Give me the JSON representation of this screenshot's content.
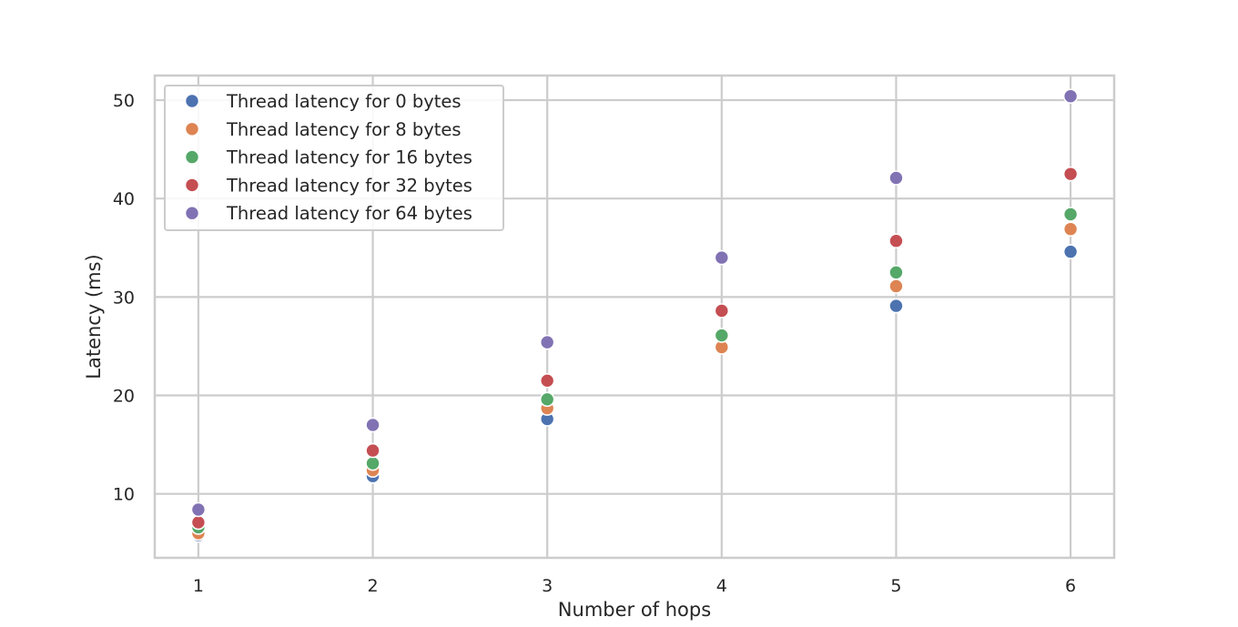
{
  "chart_data": {
    "type": "scatter",
    "title": "",
    "xlabel": "Number of hops",
    "ylabel": "Latency (ms)",
    "x": [
      1,
      2,
      3,
      4,
      5,
      6
    ],
    "xlim": [
      0.75,
      6.25
    ],
    "ylim": [
      3.5,
      52.5
    ],
    "xticks": [
      1,
      2,
      3,
      4,
      5,
      6
    ],
    "yticks": [
      10,
      20,
      30,
      40,
      50
    ],
    "grid": true,
    "legend_position": "top-left",
    "series": [
      {
        "name": "Thread latency for 0 bytes",
        "color": "#4c72b0",
        "values": [
          5.8,
          11.8,
          17.6,
          26.0,
          29.1,
          34.6
        ]
      },
      {
        "name": "Thread latency for 8 bytes",
        "color": "#dd8452",
        "values": [
          6.0,
          12.4,
          18.7,
          24.9,
          31.1,
          36.9
        ]
      },
      {
        "name": "Thread latency for 16 bytes",
        "color": "#55a868",
        "values": [
          6.6,
          13.1,
          19.6,
          26.1,
          32.5,
          38.4
        ]
      },
      {
        "name": "Thread latency for 32 bytes",
        "color": "#c44e52",
        "values": [
          7.1,
          14.4,
          21.5,
          28.6,
          35.7,
          42.5
        ]
      },
      {
        "name": "Thread latency for 64 bytes",
        "color": "#8172b3",
        "values": [
          8.4,
          17.0,
          25.4,
          34.0,
          42.1,
          50.4
        ]
      }
    ]
  }
}
